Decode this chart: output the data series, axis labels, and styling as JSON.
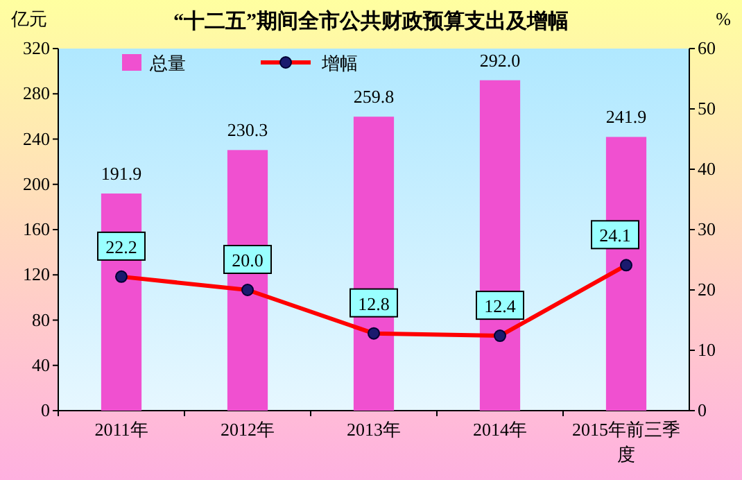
{
  "chart_data": {
    "type": "bar",
    "title": "“十二五”期间全市公共财政预算支出及增幅",
    "ylabel": "亿元",
    "y2label": "%",
    "categories": [
      "2011年",
      "2012年",
      "2013年",
      "2014年",
      "2015年前三季度"
    ],
    "series": [
      {
        "name": "总量",
        "color": "#f050d0",
        "values": [
          191.9,
          230.3,
          259.8,
          292.0,
          241.9
        ],
        "value_labels": [
          "191.9",
          "230.3",
          "259.8",
          "292.0",
          "241.9"
        ]
      },
      {
        "name": "增幅",
        "type": "line",
        "axis": "y2",
        "color": "#ff0000",
        "values": [
          22.2,
          20.0,
          12.8,
          12.4,
          24.1
        ],
        "value_labels": [
          "22.2",
          "20.0",
          "12.8",
          "12.4",
          "24.1"
        ]
      }
    ],
    "ylim": [
      0,
      320
    ],
    "yticks": [
      0,
      40,
      80,
      120,
      160,
      200,
      240,
      280,
      320
    ],
    "y2lim": [
      0,
      60
    ],
    "y2ticks": [
      0,
      10,
      20,
      30,
      40,
      50,
      60
    ],
    "legend": "top",
    "marker": "circle"
  }
}
